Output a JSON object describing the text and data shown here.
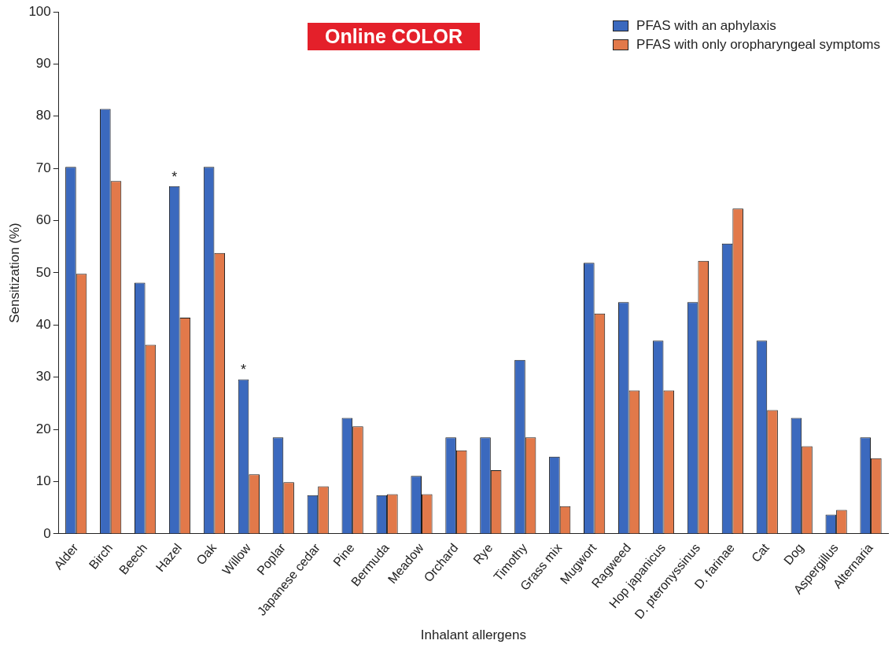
{
  "chart_data": {
    "type": "bar",
    "xlabel": "Inhalant allergens",
    "ylabel": "Sensitization (%)",
    "categories": [
      "Alder",
      "Birch",
      "Beech",
      "Hazel",
      "Oak",
      "Willow",
      "Poplar",
      "Japanese cedar",
      "Pine",
      "Bermuda",
      "Meadow",
      "Orchard",
      "Rye",
      "Timothy",
      "Grass mix",
      "Mugwort",
      "Ragweed",
      "Hop japanicus",
      "D. pteronyssinus",
      "D. farinae",
      "Cat",
      "Dog",
      "Aspergillus",
      "Alternaria"
    ],
    "series": [
      {
        "name": "PFAS with an aphylaxis",
        "color": "#3b69be",
        "values": [
          70.3,
          81.4,
          48.1,
          66.6,
          70.3,
          29.6,
          18.5,
          7.4,
          22.2,
          7.4,
          11.1,
          18.5,
          18.5,
          33.3,
          14.8,
          51.9,
          44.4,
          37.0,
          44.4,
          55.6,
          37.0,
          22.2,
          3.7,
          18.5
        ]
      },
      {
        "name": "PFAS with only oropharyngeal symptoms",
        "color": "#e2794a",
        "values": [
          49.8,
          67.6,
          36.2,
          41.4,
          53.8,
          11.4,
          9.9,
          9.1,
          20.6,
          7.6,
          7.6,
          16.0,
          12.2,
          18.5,
          5.3,
          42.2,
          27.5,
          27.5,
          52.3,
          62.3,
          23.7,
          16.8,
          4.6,
          14.5
        ]
      }
    ],
    "ylim": [
      0,
      100
    ],
    "yticks": [
      0,
      10,
      20,
      30,
      40,
      50,
      60,
      70,
      80,
      90,
      100
    ],
    "grid": false,
    "legend": "top right",
    "annotations": [
      "Online COLOR",
      {
        "text": "*",
        "x": "Hazel",
        "y": 66.6
      },
      {
        "text": "*",
        "x": "Willow",
        "y": 29.6
      }
    ]
  }
}
